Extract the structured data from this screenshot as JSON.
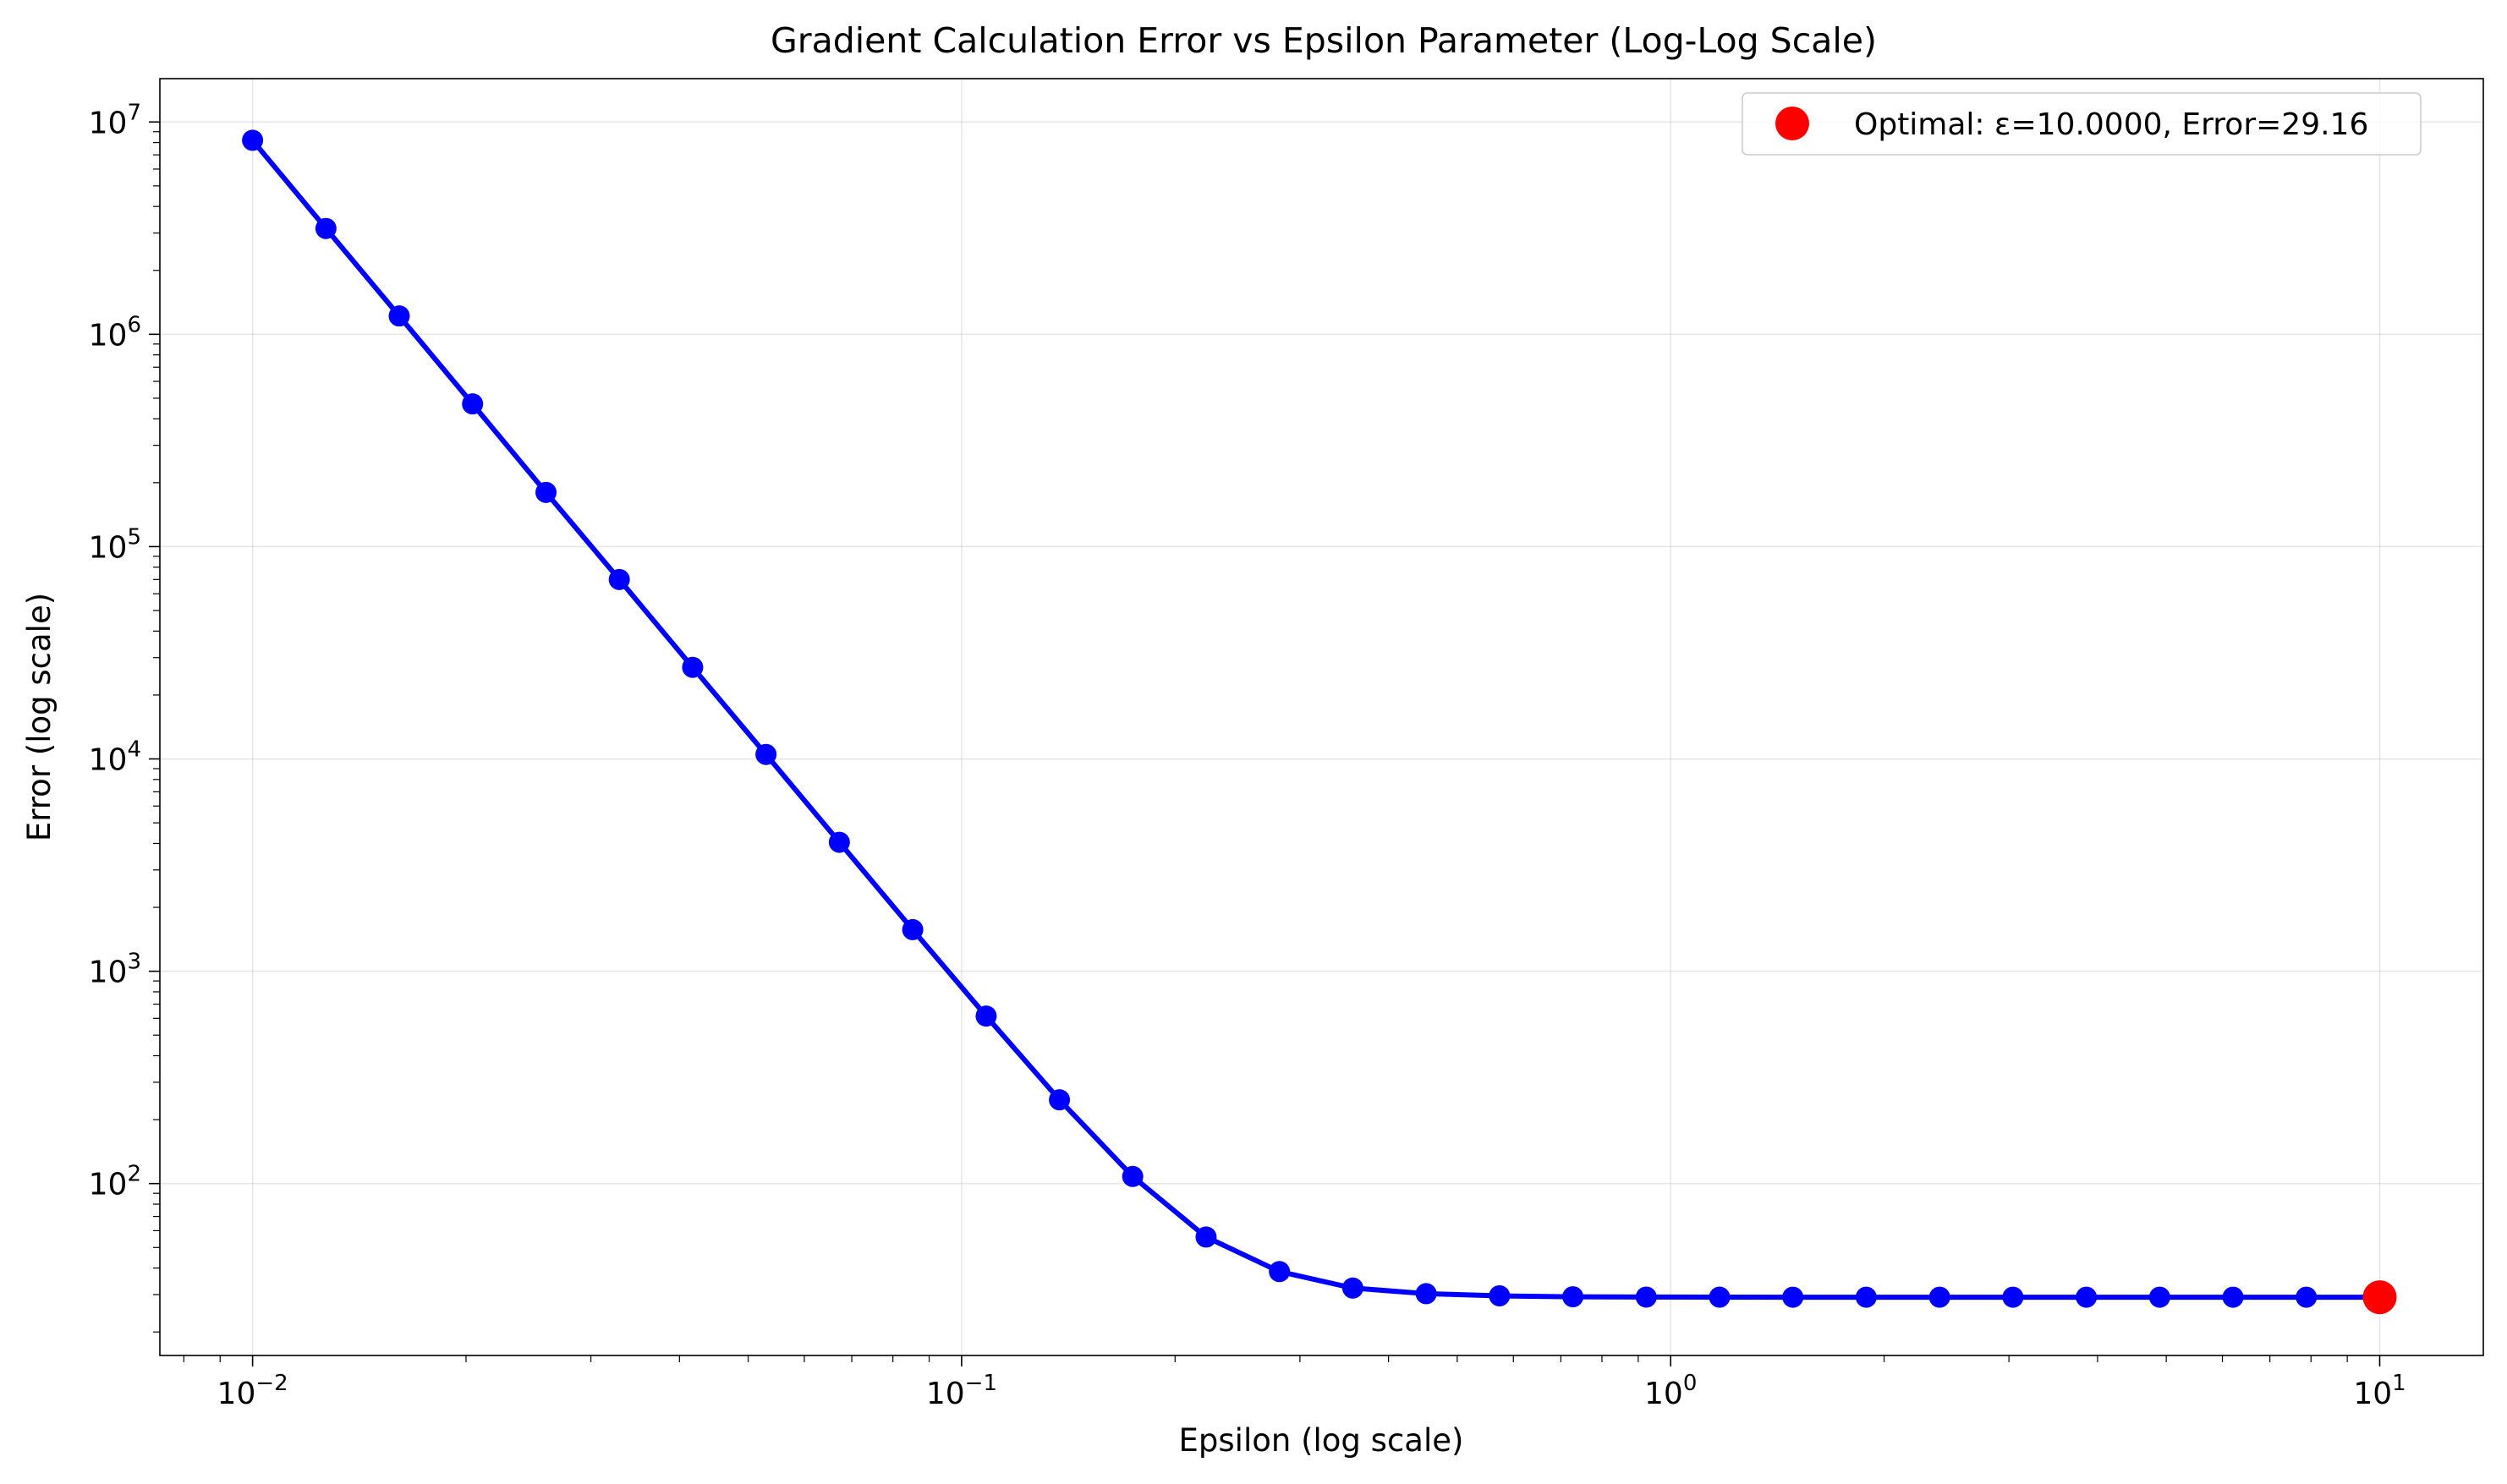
{
  "chart_data": {
    "type": "line",
    "title": "Gradient Calculation Error vs Epsilon Parameter (Log-Log Scale)",
    "xlabel": "Epsilon (log scale)",
    "ylabel": "Error (log scale)",
    "xscale": "log",
    "yscale": "log",
    "xlim": [
      0.0074,
      14.0
    ],
    "ylim": [
      15.5,
      16000000
    ],
    "grid": true,
    "legend_position": "top-right",
    "x_ticks": [
      {
        "base": "10",
        "exp": "−2"
      },
      {
        "base": "10",
        "exp": "−1"
      },
      {
        "base": "10",
        "exp": "0"
      },
      {
        "base": "10",
        "exp": "1"
      }
    ],
    "y_ticks": [
      {
        "base": "10",
        "exp": "2"
      },
      {
        "base": "10",
        "exp": "3"
      },
      {
        "base": "10",
        "exp": "4"
      },
      {
        "base": "10",
        "exp": "5"
      },
      {
        "base": "10",
        "exp": "6"
      },
      {
        "base": "10",
        "exp": "7"
      }
    ],
    "series": [
      {
        "color": "#0000ff",
        "x": [
          0.01,
          0.01269,
          0.0161,
          0.02043,
          0.02593,
          0.0329,
          0.04175,
          0.05298,
          0.06723,
          0.08532,
          0.1083,
          0.1374,
          0.1743,
          0.2212,
          0.2807,
          0.3562,
          0.452,
          0.5736,
          0.7279,
          0.9237,
          1.172,
          1.487,
          1.887,
          2.395,
          3.039,
          3.857,
          4.894,
          6.21,
          7.88,
          10.0
        ],
        "y": [
          8200000,
          3150000,
          1220000,
          470000,
          180000,
          70000,
          27000,
          10500,
          4050,
          1570,
          615,
          248,
          108,
          56,
          38.5,
          32.2,
          30.3,
          29.6,
          29.3,
          29.2,
          29.17,
          29.16,
          29.16,
          29.16,
          29.16,
          29.16,
          29.16,
          29.16,
          29.16,
          29.16
        ]
      }
    ],
    "highlight": {
      "x": 10.0,
      "y": 29.16,
      "color": "#ff0000",
      "label": "Optimal: ε=10.0000, Error=29.16"
    }
  }
}
